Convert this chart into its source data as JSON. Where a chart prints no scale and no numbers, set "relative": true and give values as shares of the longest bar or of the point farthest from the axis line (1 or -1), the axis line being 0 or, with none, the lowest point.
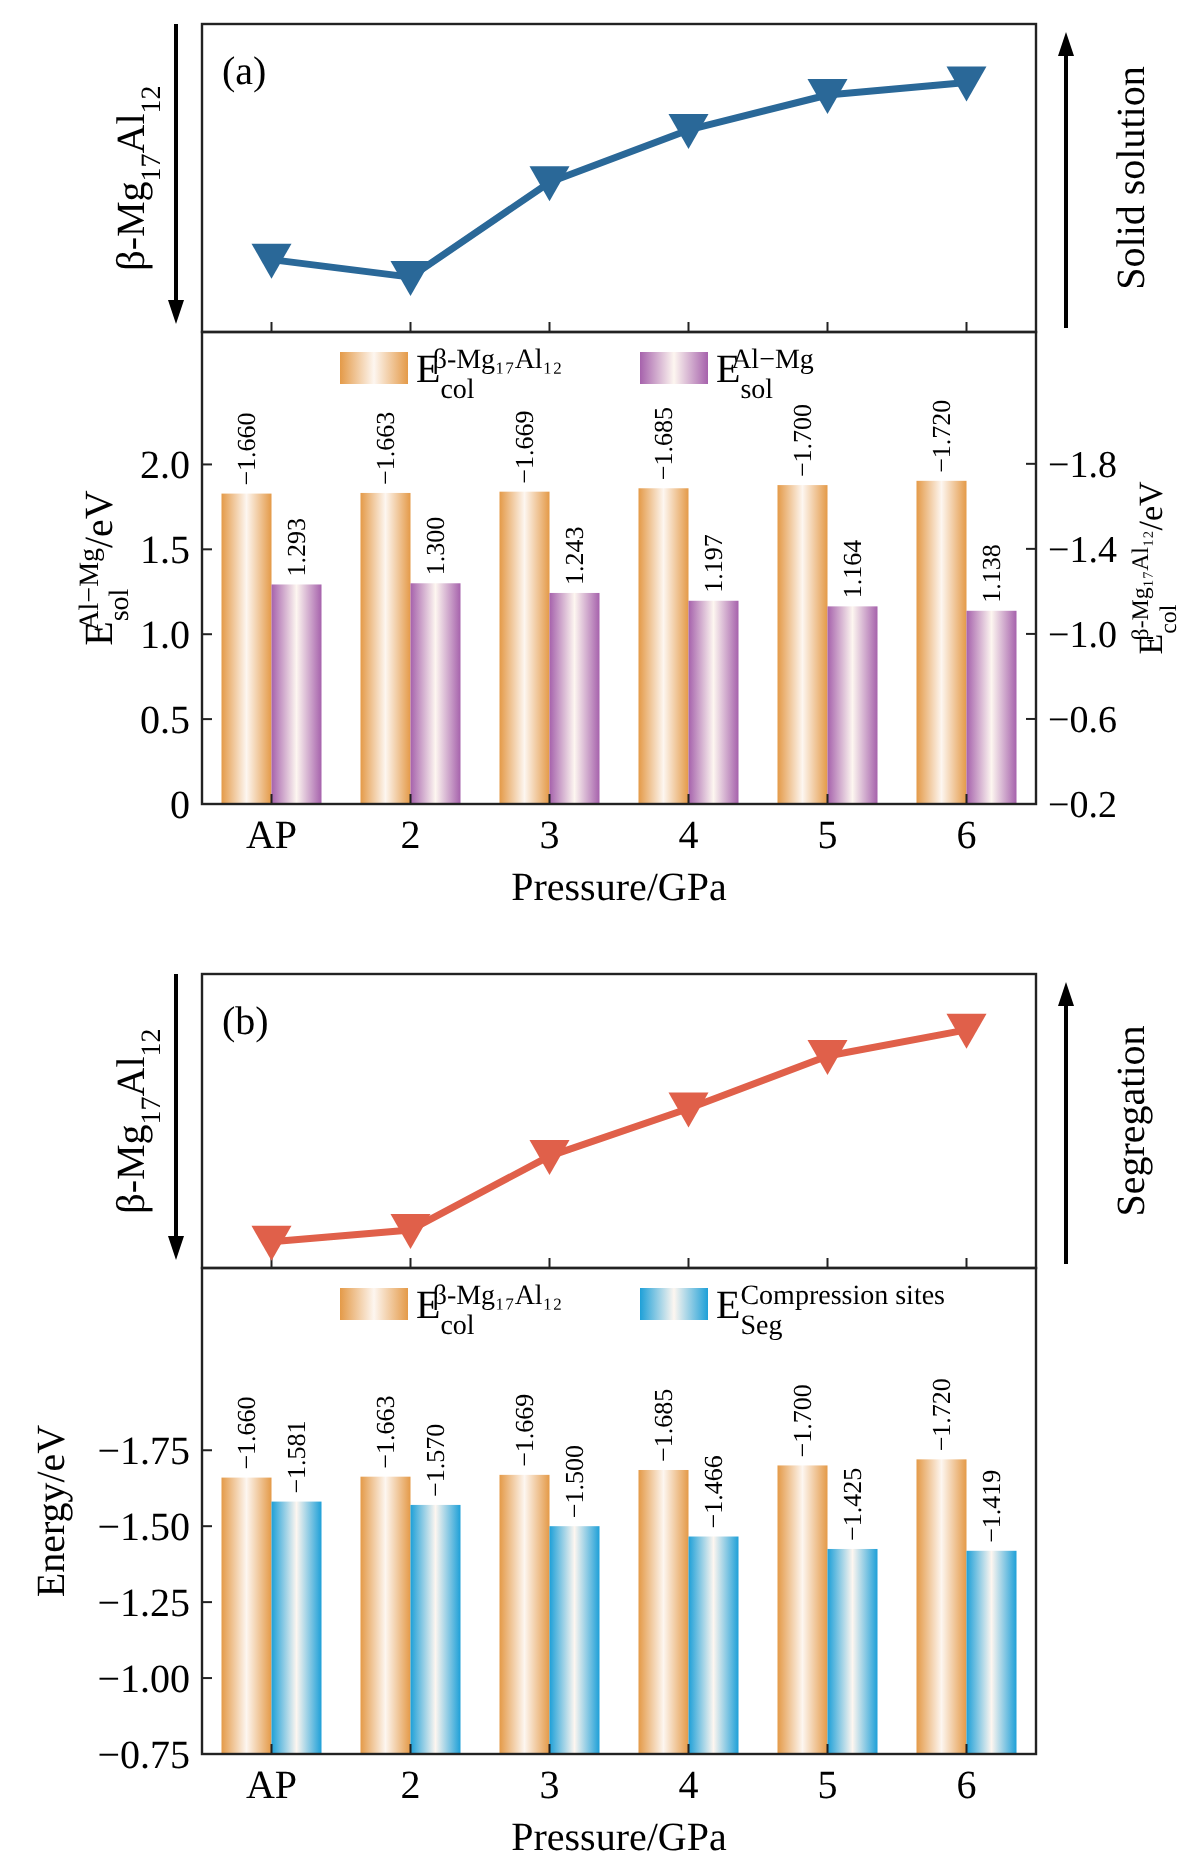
{
  "chart_data": [
    {
      "type": "line",
      "categories": [
        null,
        null,
        null,
        null,
        null,
        null
      ],
      "relative": true,
      "marker": "triangle",
      "ylabel": "β-Mg$_{17}$Al$_{12}$",
      "y2label": "Solid solution",
      "annotations": [
        "(a)"
      ],
      "series": [
        {
          "color": "#2a6898",
          "values": [
            0.29,
            0.22,
            0.6,
            0.81,
            0.95,
            1
          ]
        }
      ]
    },
    {
      "type": "bar",
      "categories": [
        "AP",
        "2",
        "3",
        "4",
        "5",
        "6"
      ],
      "xlabel": "Pressure/GPa",
      "ylabel": "E$_{sol}$$^{Al−Mg}$/eV",
      "y2label": "E$_{col}$$^{β-Mg₁₇Al₁₂}$/eV",
      "legend": "top",
      "ylim": [
        0,
        2.78
      ],
      "yticks": [
        0,
        0.5,
        {
          "value": 1,
          "label": "1.0"
        },
        1.5,
        {
          "value": 2,
          "label": "2.0"
        }
      ],
      "y2lim": [
        -0.2,
        -2.42
      ],
      "y2ticks": [
        {
          "value": -0.2,
          "label": "−0.2"
        },
        {
          "value": -0.6,
          "label": "−0.6"
        },
        {
          "value": -1,
          "label": "−1.0"
        },
        {
          "value": -1.4,
          "label": "−1.4"
        },
        {
          "value": -1.8,
          "label": "−1.8"
        }
      ],
      "series": [
        {
          "name": "E$_{col}$$^{β-Mg₁₇Al₁₂}$",
          "color": "#e49a48",
          "axis": "y2",
          "values": [
            -1.66,
            -1.663,
            -1.669,
            -1.685,
            -1.7,
            -1.72
          ],
          "value_labels": [
            "−1.660",
            "−1.663",
            "−1.669",
            "−1.685",
            "−1.700",
            "−1.720"
          ]
        },
        {
          "name": "E$_{sol}$$^{Al−Mg}$",
          "color": "#a662ac",
          "values": [
            1.293,
            1.3,
            1.243,
            1.197,
            1.164,
            1.138
          ],
          "value_labels": [
            "1.293",
            "1.300",
            "1.243",
            "1.197",
            "1.164",
            "1.138"
          ]
        }
      ]
    },
    {
      "type": "line",
      "categories": [
        null,
        null,
        null,
        null,
        null,
        null
      ],
      "relative": true,
      "marker": "triangle",
      "ylabel": "β-Mg$_{17}$Al$_{12}$",
      "y2label": "Segregation",
      "annotations": [
        "(b)"
      ],
      "series": [
        {
          "color": "#e0604a",
          "values": [
            0.11,
            0.16,
            0.47,
            0.67,
            0.89,
            1
          ]
        }
      ]
    },
    {
      "type": "bar",
      "categories": [
        "AP",
        "2",
        "3",
        "4",
        "5",
        "6"
      ],
      "xlabel": "Pressure/GPa",
      "ylabel": "Energy/eV",
      "legend": "top",
      "ylim": [
        -0.75,
        -2.35
      ],
      "yticks": [
        {
          "value": -0.75,
          "label": "−0.75"
        },
        {
          "value": -1,
          "label": "−1.00"
        },
        {
          "value": -1.25,
          "label": "−1.25"
        },
        {
          "value": -1.5,
          "label": "−1.50"
        },
        {
          "value": -1.75,
          "label": "−1.75"
        }
      ],
      "series": [
        {
          "name": "E$_{col}$$^{β-Mg₁₇Al₁₂}$",
          "color": "#e49a48",
          "values": [
            -1.66,
            -1.663,
            -1.669,
            -1.685,
            -1.7,
            -1.72
          ],
          "value_labels": [
            "−1.660",
            "−1.663",
            "−1.669",
            "−1.685",
            "−1.700",
            "−1.720"
          ]
        },
        {
          "name": "E$_{Seg}$$^{Compression sites}$",
          "color": "#1ea0d8",
          "values": [
            -1.581,
            -1.57,
            -1.5,
            -1.466,
            -1.425,
            -1.419
          ],
          "value_labels": [
            "−1.581",
            "−1.570",
            "−1.500",
            "−1.466",
            "−1.425",
            "−1.419"
          ]
        }
      ]
    }
  ]
}
